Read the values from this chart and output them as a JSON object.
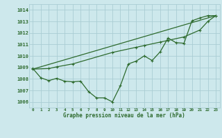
{
  "xlabel": "Graphe pression niveau de la mer (hPa)",
  "background_color": "#cde8ec",
  "grid_color": "#aacdd3",
  "line_color": "#2d6a2d",
  "xmin": -0.5,
  "xmax": 23.5,
  "ymin": 1005.5,
  "ymax": 1014.5,
  "yticks": [
    1006,
    1007,
    1008,
    1009,
    1010,
    1011,
    1012,
    1013,
    1014
  ],
  "xticks": [
    0,
    1,
    2,
    3,
    4,
    5,
    6,
    7,
    8,
    9,
    10,
    11,
    12,
    13,
    14,
    15,
    16,
    17,
    18,
    19,
    20,
    21,
    22,
    23
  ],
  "line1_main": [
    [
      0,
      1008.9
    ],
    [
      1,
      1008.1
    ],
    [
      2,
      1007.85
    ],
    [
      3,
      1008.05
    ],
    [
      4,
      1007.8
    ],
    [
      5,
      1007.75
    ],
    [
      6,
      1007.8
    ],
    [
      7,
      1006.9
    ],
    [
      8,
      1006.35
    ],
    [
      9,
      1006.35
    ],
    [
      10,
      1006.0
    ],
    [
      11,
      1007.4
    ],
    [
      12,
      1009.3
    ],
    [
      13,
      1009.55
    ],
    [
      14,
      1010.0
    ],
    [
      15,
      1009.6
    ],
    [
      16,
      1010.35
    ],
    [
      17,
      1011.55
    ],
    [
      18,
      1011.15
    ],
    [
      19,
      1011.1
    ],
    [
      20,
      1013.05
    ],
    [
      21,
      1013.3
    ],
    [
      22,
      1013.5
    ],
    [
      23,
      1013.5
    ]
  ],
  "line2_trend": [
    [
      0,
      1008.85
    ],
    [
      2,
      1008.9
    ],
    [
      3,
      1009.05
    ],
    [
      5,
      1009.3
    ],
    [
      10,
      1010.3
    ],
    [
      13,
      1010.75
    ],
    [
      14,
      1010.9
    ],
    [
      16,
      1011.2
    ],
    [
      17,
      1011.35
    ],
    [
      19,
      1011.65
    ],
    [
      21,
      1012.25
    ],
    [
      22,
      1013.0
    ],
    [
      23,
      1013.5
    ]
  ],
  "line3_straight": [
    [
      0,
      1008.85
    ],
    [
      23,
      1013.5
    ]
  ]
}
